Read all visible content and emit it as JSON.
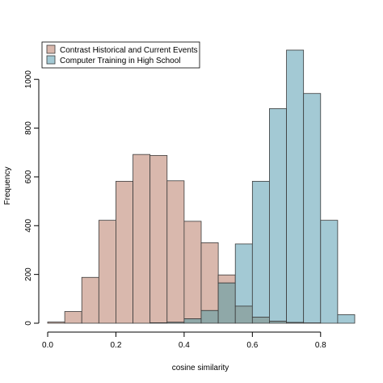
{
  "chart_data": {
    "type": "bar",
    "xlabel": "cosine similarity",
    "ylabel": "Frequency",
    "xlim": [
      0.0,
      0.9
    ],
    "ylim": [
      0,
      1120
    ],
    "x_ticks": [
      0.0,
      0.2,
      0.4,
      0.6,
      0.8
    ],
    "x_tick_labels": [
      "0.0",
      "0.2",
      "0.4",
      "0.6",
      "0.8"
    ],
    "y_ticks": [
      0,
      200,
      400,
      600,
      800,
      1000
    ],
    "y_tick_labels": [
      "0",
      "200",
      "400",
      "600",
      "800",
      "1000"
    ],
    "bin_width": 0.05,
    "bin_starts": [
      0.0,
      0.05,
      0.1,
      0.15,
      0.2,
      0.25,
      0.3,
      0.35,
      0.4,
      0.45,
      0.5,
      0.55,
      0.6,
      0.65,
      0.7,
      0.75,
      0.8,
      0.85
    ],
    "legend_position": "top-left",
    "grid": false,
    "series": [
      {
        "name": "Contrast Historical and Current Events",
        "color": "#d9b8ad",
        "values": [
          5,
          48,
          188,
          422,
          582,
          692,
          688,
          584,
          418,
          330,
          198,
          70,
          25,
          8,
          3,
          1,
          0,
          0
        ]
      },
      {
        "name": "Computer Training in High School",
        "color": "#a3c9d4",
        "values": [
          0,
          0,
          0,
          0,
          0,
          0,
          2,
          4,
          18,
          52,
          165,
          325,
          582,
          880,
          1120,
          942,
          422,
          35
        ]
      }
    ],
    "overlap_color": "#8fa8a8"
  }
}
